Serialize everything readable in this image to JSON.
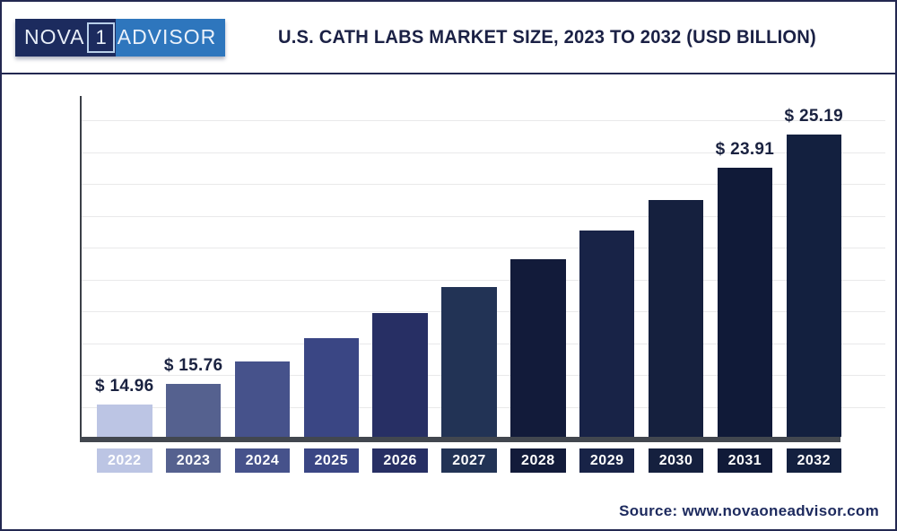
{
  "header": {
    "title": "U.S. CATH LABS MARKET SIZE, 2023 TO 2032 (USD BILLION)"
  },
  "logo": {
    "part_nova": "NOVA",
    "part_one": "1",
    "part_advisor": "ADVISOR"
  },
  "footer": {
    "source": "Source: www.novaoneadvisor.com"
  },
  "chart_data": {
    "type": "bar",
    "title": "U.S. Cath Labs Market Size, 2023 to 2032 (USD Billion)",
    "unit": "USD Billion",
    "categories": [
      "2022",
      "2023",
      "2024",
      "2025",
      "2026",
      "2027",
      "2028",
      "2029",
      "2030",
      "2031",
      "2032"
    ],
    "values": [
      14.96,
      15.76,
      16.6,
      17.49,
      18.43,
      19.41,
      20.45,
      21.54,
      22.69,
      23.91,
      25.19
    ],
    "data_labels": [
      "$ 14.96",
      "$ 15.76",
      null,
      null,
      null,
      null,
      null,
      null,
      null,
      "$ 23.91",
      "$ 25.19"
    ],
    "bar_colors": [
      "#bcc5e4",
      "#55618f",
      "#46528b",
      "#3a4684",
      "#272f64",
      "#223355",
      "#121b3a",
      "#182347",
      "#15203e",
      "#101a38",
      "#13203f"
    ],
    "label_color": "#1a2240",
    "value_axis_visible": false,
    "grid": true,
    "ylim_baseline": 13.75,
    "legend": "none"
  }
}
